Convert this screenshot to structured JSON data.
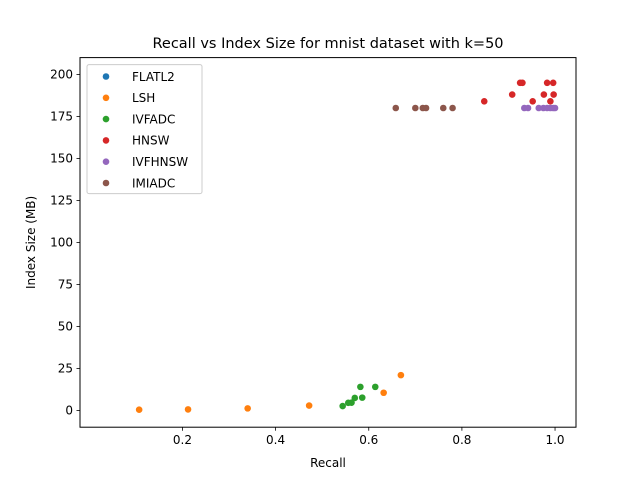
{
  "chart_data": {
    "type": "scatter",
    "title": "Recall vs Index Size for mnist dataset with k=50",
    "xlabel": "Recall",
    "ylabel": "Index Size (MB)",
    "xlim": [
      -0.02,
      1.045
    ],
    "ylim": [
      -10,
      210
    ],
    "xticks": [
      0.2,
      0.4,
      0.6,
      0.8,
      1.0
    ],
    "xtick_labels": [
      "0.2",
      "0.4",
      "0.6",
      "0.8",
      "1.0"
    ],
    "yticks": [
      0,
      25,
      50,
      75,
      100,
      125,
      150,
      175,
      200
    ],
    "ytick_labels": [
      "0",
      "25",
      "50",
      "75",
      "100",
      "125",
      "150",
      "175",
      "200"
    ],
    "grid": false,
    "legend_position": "upper-left",
    "series": [
      {
        "name": "FLATL2",
        "color": "#1f77b4",
        "points": []
      },
      {
        "name": "LSH",
        "color": "#ff7f0e",
        "points": [
          [
            0.107,
            0.4
          ],
          [
            0.212,
            0.6
          ],
          [
            0.34,
            1.2
          ],
          [
            0.472,
            2.9
          ],
          [
            0.632,
            10.5
          ],
          [
            0.669,
            21
          ]
        ]
      },
      {
        "name": "IVFADC",
        "color": "#2ca02c",
        "points": [
          [
            0.544,
            2.6
          ],
          [
            0.556,
            4.5
          ],
          [
            0.563,
            4.6
          ],
          [
            0.57,
            7.4
          ],
          [
            0.582,
            14
          ],
          [
            0.586,
            7.6
          ],
          [
            0.614,
            14
          ]
        ]
      },
      {
        "name": "HNSW",
        "color": "#d62728",
        "points": [
          [
            0.848,
            184
          ],
          [
            0.908,
            188
          ],
          [
            0.925,
            195
          ],
          [
            0.93,
            195
          ],
          [
            0.952,
            184
          ],
          [
            0.976,
            188
          ],
          [
            0.983,
            195
          ],
          [
            0.99,
            184
          ],
          [
            0.996,
            195
          ],
          [
            0.997,
            188
          ]
        ]
      },
      {
        "name": "IVFHNSW",
        "color": "#9467bd",
        "points": [
          [
            0.934,
            180
          ],
          [
            0.942,
            180
          ],
          [
            0.965,
            180
          ],
          [
            0.975,
            180
          ],
          [
            0.983,
            180
          ],
          [
            0.99,
            180
          ],
          [
            0.996,
            180
          ],
          [
            1.0,
            180
          ]
        ]
      },
      {
        "name": "IMIADC",
        "color": "#8c564b",
        "points": [
          [
            0.658,
            180
          ],
          [
            0.7,
            180
          ],
          [
            0.716,
            180
          ],
          [
            0.723,
            180
          ],
          [
            0.76,
            180
          ],
          [
            0.78,
            180
          ]
        ]
      }
    ]
  }
}
